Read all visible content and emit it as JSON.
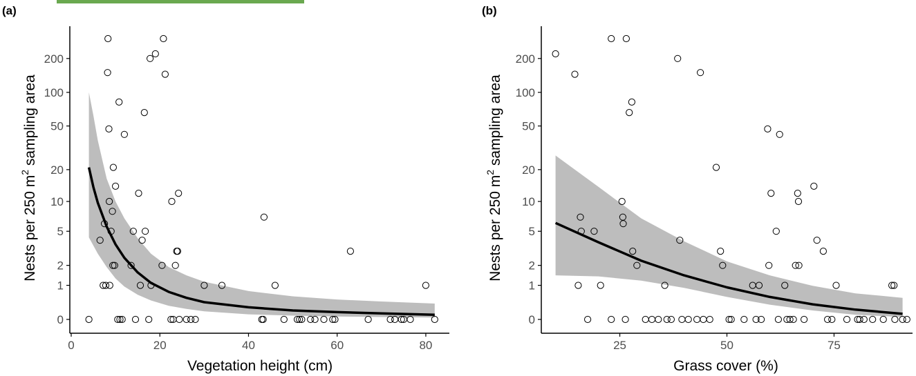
{
  "colors": {
    "accent_bar": "#6aa84f",
    "ci_band": "#bdbdbd",
    "fit_line": "#000000",
    "points": "#000000",
    "axis": "#000000",
    "tick_text": "#4d4d4d"
  },
  "chart_data": [
    {
      "type": "scatter",
      "panel": "(a)",
      "xlabel": "Vegetation height (cm)",
      "ylabel_parts": [
        "Nests per 250 m",
        "2",
        " sampling area"
      ],
      "xlim": [
        0,
        85
      ],
      "x_ticks": [
        0,
        20,
        40,
        60,
        80
      ],
      "y_scale": "pseudo-log",
      "y_ticks": [
        0,
        1,
        2,
        5,
        10,
        20,
        50,
        100,
        200
      ],
      "ylim": [
        0,
        300
      ],
      "grid": false,
      "points": [
        [
          4,
          0
        ],
        [
          6.5,
          4
        ],
        [
          7.2,
          1
        ],
        [
          7.5,
          6
        ],
        [
          7.8,
          1
        ],
        [
          8.2,
          150
        ],
        [
          8.3,
          300
        ],
        [
          8.5,
          47
        ],
        [
          8.6,
          10
        ],
        [
          8.7,
          1
        ],
        [
          9,
          5
        ],
        [
          9.3,
          8
        ],
        [
          9.5,
          21
        ],
        [
          9.4,
          2
        ],
        [
          9.8,
          2
        ],
        [
          10,
          14
        ],
        [
          10.5,
          0
        ],
        [
          10.8,
          82
        ],
        [
          11,
          0
        ],
        [
          11.5,
          0
        ],
        [
          12,
          42
        ],
        [
          13.5,
          2
        ],
        [
          14,
          5
        ],
        [
          14.5,
          0
        ],
        [
          15.2,
          12
        ],
        [
          15.6,
          1
        ],
        [
          16,
          4
        ],
        [
          16.5,
          66
        ],
        [
          16.7,
          5
        ],
        [
          17.5,
          0
        ],
        [
          17.8,
          200
        ],
        [
          18,
          1
        ],
        [
          19,
          220
        ],
        [
          20.5,
          2
        ],
        [
          20.8,
          300
        ],
        [
          21.2,
          145
        ],
        [
          22.5,
          0
        ],
        [
          22.7,
          10
        ],
        [
          23,
          0
        ],
        [
          23.5,
          2
        ],
        [
          23.8,
          3
        ],
        [
          24,
          3
        ],
        [
          24.2,
          12
        ],
        [
          24.4,
          0
        ],
        [
          26,
          0
        ],
        [
          27,
          0
        ],
        [
          28,
          0
        ],
        [
          30,
          1
        ],
        [
          34,
          1
        ],
        [
          43,
          0
        ],
        [
          43.3,
          0
        ],
        [
          43.5,
          7
        ],
        [
          46,
          1
        ],
        [
          48,
          0
        ],
        [
          51,
          0
        ],
        [
          51.5,
          0
        ],
        [
          52,
          0
        ],
        [
          54,
          0
        ],
        [
          55,
          0
        ],
        [
          57,
          0
        ],
        [
          59,
          0
        ],
        [
          59.5,
          0
        ],
        [
          63,
          3
        ],
        [
          67,
          0
        ],
        [
          72,
          0
        ],
        [
          73,
          0
        ],
        [
          74.5,
          0
        ],
        [
          75,
          0
        ],
        [
          76.5,
          0
        ],
        [
          80,
          1
        ],
        [
          82,
          0
        ]
      ],
      "fit_line": [
        [
          4,
          21
        ],
        [
          5,
          13.7
        ],
        [
          6,
          9.7
        ],
        [
          8,
          5.6
        ],
        [
          10,
          3.6
        ],
        [
          12,
          2.5
        ],
        [
          15,
          1.6
        ],
        [
          18,
          1.1
        ],
        [
          22,
          0.75
        ],
        [
          26,
          0.55
        ],
        [
          30,
          0.42
        ],
        [
          40,
          0.28
        ],
        [
          50,
          0.2
        ],
        [
          60,
          0.16
        ],
        [
          70,
          0.13
        ],
        [
          82,
          0.1
        ]
      ],
      "ci_lower": [
        [
          4,
          4.3
        ],
        [
          6,
          2.8
        ],
        [
          8,
          1.9
        ],
        [
          10,
          1.3
        ],
        [
          12,
          0.95
        ],
        [
          15,
          0.65
        ],
        [
          18,
          0.47
        ],
        [
          22,
          0.32
        ],
        [
          26,
          0.24
        ],
        [
          30,
          0.18
        ],
        [
          40,
          0.11
        ],
        [
          50,
          0.08
        ],
        [
          60,
          0.06
        ],
        [
          70,
          0.05
        ],
        [
          82,
          0.04
        ]
      ],
      "ci_upper": [
        [
          4,
          100
        ],
        [
          5,
          62
        ],
        [
          6,
          37
        ],
        [
          8,
          16.5
        ],
        [
          10,
          10
        ],
        [
          12,
          6.8
        ],
        [
          15,
          4.2
        ],
        [
          18,
          2.8
        ],
        [
          22,
          1.9
        ],
        [
          26,
          1.45
        ],
        [
          30,
          1.15
        ],
        [
          40,
          0.78
        ],
        [
          50,
          0.6
        ],
        [
          60,
          0.5
        ],
        [
          70,
          0.44
        ],
        [
          82,
          0.38
        ]
      ]
    },
    {
      "type": "scatter",
      "panel": "(b)",
      "xlabel": "Grass cover (%)",
      "ylabel_parts": [
        "Nests per 250 m",
        "2",
        " sampling area"
      ],
      "xlim": [
        7,
        93
      ],
      "x_ticks": [
        25,
        50,
        75
      ],
      "y_scale": "pseudo-log",
      "y_ticks": [
        0,
        1,
        2,
        5,
        10,
        20,
        50,
        100,
        200
      ],
      "ylim": [
        0,
        300
      ],
      "grid": false,
      "points": [
        [
          10,
          220
        ],
        [
          14.5,
          145
        ],
        [
          15.3,
          1
        ],
        [
          15.8,
          7
        ],
        [
          16,
          5
        ],
        [
          17.5,
          0
        ],
        [
          19,
          5
        ],
        [
          20.5,
          1
        ],
        [
          23,
          0
        ],
        [
          23,
          300
        ],
        [
          25.5,
          10
        ],
        [
          25.7,
          7
        ],
        [
          25.8,
          6
        ],
        [
          26.3,
          0
        ],
        [
          26.5,
          300
        ],
        [
          27.2,
          66
        ],
        [
          27.8,
          82
        ],
        [
          28,
          3
        ],
        [
          29,
          2
        ],
        [
          31,
          0
        ],
        [
          32.5,
          0
        ],
        [
          34,
          0
        ],
        [
          35.5,
          1
        ],
        [
          36,
          0
        ],
        [
          37,
          0
        ],
        [
          38.5,
          200
        ],
        [
          39,
          4
        ],
        [
          39.5,
          0
        ],
        [
          41,
          0
        ],
        [
          43,
          0
        ],
        [
          43.8,
          150
        ],
        [
          44.5,
          0
        ],
        [
          46,
          0
        ],
        [
          47.5,
          21
        ],
        [
          48.5,
          3
        ],
        [
          49,
          2
        ],
        [
          50.5,
          0
        ],
        [
          51,
          0
        ],
        [
          54,
          0
        ],
        [
          56,
          1
        ],
        [
          56.8,
          0
        ],
        [
          57.5,
          1
        ],
        [
          58,
          0
        ],
        [
          59.5,
          47
        ],
        [
          59.8,
          2
        ],
        [
          60.3,
          12
        ],
        [
          61.5,
          5
        ],
        [
          62,
          0
        ],
        [
          62.3,
          42
        ],
        [
          63.5,
          1
        ],
        [
          64,
          0
        ],
        [
          64.7,
          0
        ],
        [
          65.5,
          0
        ],
        [
          66,
          2
        ],
        [
          66.5,
          12
        ],
        [
          66.7,
          10
        ],
        [
          66.8,
          2
        ],
        [
          68,
          0
        ],
        [
          70.3,
          14
        ],
        [
          71,
          4
        ],
        [
          72.5,
          3
        ],
        [
          73.5,
          0
        ],
        [
          74.5,
          0
        ],
        [
          75.5,
          1
        ],
        [
          78,
          0
        ],
        [
          80.5,
          0
        ],
        [
          81,
          0
        ],
        [
          82,
          0
        ],
        [
          84,
          0
        ],
        [
          86.5,
          0
        ],
        [
          88.5,
          1
        ],
        [
          89,
          1
        ],
        [
          89.2,
          0
        ],
        [
          91,
          0
        ],
        [
          92,
          0
        ]
      ],
      "fit_line": [
        [
          10,
          6.1
        ],
        [
          20,
          3.8
        ],
        [
          30,
          2.3
        ],
        [
          40,
          1.45
        ],
        [
          50,
          0.92
        ],
        [
          60,
          0.58
        ],
        [
          70,
          0.36
        ],
        [
          80,
          0.22
        ],
        [
          91,
          0.12
        ]
      ],
      "ci_lower": [
        [
          10,
          1.45
        ],
        [
          20,
          1.4
        ],
        [
          30,
          1.2
        ],
        [
          40,
          0.9
        ],
        [
          50,
          0.58
        ],
        [
          60,
          0.35
        ],
        [
          70,
          0.2
        ],
        [
          80,
          0.1
        ],
        [
          91,
          0.05
        ]
      ],
      "ci_upper": [
        [
          10,
          27
        ],
        [
          20,
          13.8
        ],
        [
          30,
          6.8
        ],
        [
          40,
          3.9
        ],
        [
          50,
          2.25
        ],
        [
          60,
          1.45
        ],
        [
          70,
          0.98
        ],
        [
          80,
          0.7
        ],
        [
          91,
          0.55
        ]
      ]
    }
  ]
}
